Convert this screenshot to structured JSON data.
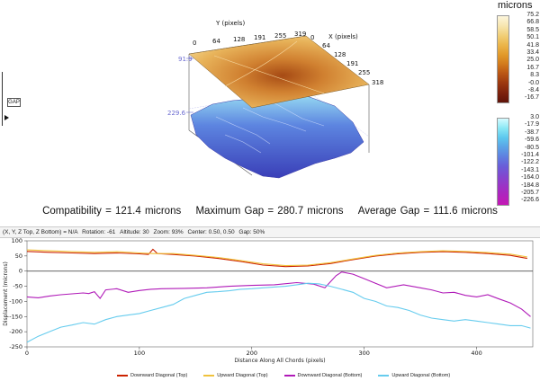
{
  "view3d": {
    "y_axis_label": "Y (pixels)",
    "x_axis_label": "X (pixels)",
    "y_ticks": [
      "0",
      "64",
      "128",
      "191",
      "255",
      "319"
    ],
    "x_ticks": [
      "0",
      "64",
      "128",
      "191",
      "255",
      "318"
    ],
    "z_top_value": "91.9",
    "z_bottom_value": "229.6",
    "gap_button": "GAP"
  },
  "colorbar_top": {
    "title": "microns",
    "labels": [
      "75.2",
      "66.8",
      "58.5",
      "50.1",
      "41.8",
      "33.4",
      "25.0",
      "16.7",
      "8.3",
      "-0.0",
      "-8.4",
      "-16.7"
    ],
    "colors": [
      "#fdf6dc",
      "#f7e6b0",
      "#f1cf78",
      "#ebb54a",
      "#e29a2a",
      "#d27a1c",
      "#b95514",
      "#9b3810",
      "#7d220d",
      "#5f1309"
    ]
  },
  "colorbar_bottom": {
    "labels": [
      "3.0",
      "-17.9",
      "-38.7",
      "-59.6",
      "-80.5",
      "-101.4",
      "-122.2",
      "-143.1",
      "-164.0",
      "-184.8",
      "-205.7",
      "-226.6"
    ],
    "colors": [
      "#d6fbff",
      "#8ae8f5",
      "#5cc7ee",
      "#5ba2e6",
      "#5f7ee0",
      "#6a5cd8",
      "#8247cf",
      "#9a34c6",
      "#b023bd",
      "#c419b5"
    ]
  },
  "stats": {
    "compatibility": "Compatibility = 121.4 microns",
    "max_gap": "Maximum Gap = 280.7 microns",
    "avg_gap": "Average Gap = 111.6 microns"
  },
  "infobar": {
    "coords": "(X, Y, Z Top, Z Bottom) = N/A",
    "rotation": "Rotation: -61",
    "altitude": "Altitude: 30",
    "zoom": "Zoom: 93%",
    "center": "Center: 0.50, 0.50",
    "gap": "Gap: 50%"
  },
  "chart_data": {
    "type": "line",
    "xlabel": "Distance Along All Chords (pixels)",
    "ylabel": "Displacement (microns)",
    "xlim": [
      0,
      450
    ],
    "ylim": [
      -250,
      100
    ],
    "x_ticks": [
      0,
      100,
      200,
      300,
      400
    ],
    "y_ticks": [
      100,
      50,
      0,
      -50,
      -100,
      -150,
      -200,
      -250
    ],
    "series": [
      {
        "name": "Downward Diagonal (Top)",
        "color": "#cc2200",
        "points": [
          [
            0,
            65
          ],
          [
            20,
            62
          ],
          [
            40,
            60
          ],
          [
            60,
            58
          ],
          [
            80,
            60
          ],
          [
            100,
            57
          ],
          [
            108,
            55
          ],
          [
            112,
            72
          ],
          [
            116,
            58
          ],
          [
            130,
            55
          ],
          [
            150,
            50
          ],
          [
            170,
            42
          ],
          [
            190,
            32
          ],
          [
            210,
            20
          ],
          [
            230,
            15
          ],
          [
            250,
            17
          ],
          [
            270,
            25
          ],
          [
            290,
            38
          ],
          [
            310,
            50
          ],
          [
            330,
            57
          ],
          [
            350,
            62
          ],
          [
            370,
            64
          ],
          [
            390,
            62
          ],
          [
            410,
            58
          ],
          [
            430,
            52
          ],
          [
            445,
            42
          ]
        ]
      },
      {
        "name": "Upward Diagonal (Top)",
        "color": "#f0c23c",
        "points": [
          [
            0,
            70
          ],
          [
            20,
            67
          ],
          [
            40,
            64
          ],
          [
            60,
            62
          ],
          [
            80,
            64
          ],
          [
            100,
            60
          ],
          [
            112,
            58
          ],
          [
            130,
            58
          ],
          [
            150,
            52
          ],
          [
            170,
            45
          ],
          [
            190,
            35
          ],
          [
            210,
            24
          ],
          [
            230,
            18
          ],
          [
            250,
            20
          ],
          [
            270,
            28
          ],
          [
            290,
            40
          ],
          [
            310,
            52
          ],
          [
            330,
            60
          ],
          [
            350,
            64
          ],
          [
            370,
            67
          ],
          [
            390,
            65
          ],
          [
            410,
            61
          ],
          [
            430,
            56
          ],
          [
            445,
            47
          ]
        ]
      },
      {
        "name": "Downward Diagonal (Bottom)",
        "color": "#b01ab8",
        "points": [
          [
            0,
            -85
          ],
          [
            10,
            -88
          ],
          [
            20,
            -82
          ],
          [
            30,
            -78
          ],
          [
            40,
            -75
          ],
          [
            50,
            -72
          ],
          [
            55,
            -74
          ],
          [
            60,
            -68
          ],
          [
            65,
            -90
          ],
          [
            70,
            -62
          ],
          [
            80,
            -58
          ],
          [
            90,
            -70
          ],
          [
            100,
            -64
          ],
          [
            110,
            -60
          ],
          [
            120,
            -58
          ],
          [
            140,
            -57
          ],
          [
            160,
            -55
          ],
          [
            180,
            -50
          ],
          [
            200,
            -47
          ],
          [
            220,
            -45
          ],
          [
            240,
            -38
          ],
          [
            255,
            -43
          ],
          [
            265,
            -55
          ],
          [
            275,
            -15
          ],
          [
            280,
            -3
          ],
          [
            290,
            -10
          ],
          [
            300,
            -25
          ],
          [
            310,
            -40
          ],
          [
            320,
            -55
          ],
          [
            335,
            -45
          ],
          [
            350,
            -55
          ],
          [
            360,
            -62
          ],
          [
            370,
            -72
          ],
          [
            380,
            -70
          ],
          [
            390,
            -80
          ],
          [
            400,
            -85
          ],
          [
            410,
            -78
          ],
          [
            420,
            -92
          ],
          [
            430,
            -105
          ],
          [
            440,
            -125
          ],
          [
            448,
            -150
          ]
        ]
      },
      {
        "name": "Upward Diagonal (Bottom)",
        "color": "#66ccee",
        "points": [
          [
            0,
            -235
          ],
          [
            10,
            -215
          ],
          [
            20,
            -200
          ],
          [
            30,
            -185
          ],
          [
            40,
            -178
          ],
          [
            50,
            -170
          ],
          [
            60,
            -175
          ],
          [
            70,
            -160
          ],
          [
            80,
            -150
          ],
          [
            90,
            -145
          ],
          [
            100,
            -140
          ],
          [
            110,
            -130
          ],
          [
            120,
            -120
          ],
          [
            130,
            -110
          ],
          [
            140,
            -90
          ],
          [
            150,
            -80
          ],
          [
            160,
            -70
          ],
          [
            170,
            -68
          ],
          [
            180,
            -65
          ],
          [
            190,
            -60
          ],
          [
            200,
            -58
          ],
          [
            210,
            -55
          ],
          [
            230,
            -50
          ],
          [
            240,
            -45
          ],
          [
            250,
            -40
          ],
          [
            260,
            -42
          ],
          [
            270,
            -50
          ],
          [
            280,
            -60
          ],
          [
            290,
            -70
          ],
          [
            300,
            -90
          ],
          [
            310,
            -100
          ],
          [
            320,
            -115
          ],
          [
            330,
            -120
          ],
          [
            340,
            -130
          ],
          [
            350,
            -145
          ],
          [
            360,
            -155
          ],
          [
            370,
            -160
          ],
          [
            380,
            -165
          ],
          [
            390,
            -160
          ],
          [
            400,
            -165
          ],
          [
            410,
            -170
          ],
          [
            420,
            -175
          ],
          [
            430,
            -180
          ],
          [
            440,
            -180
          ],
          [
            448,
            -188
          ]
        ]
      }
    ],
    "legend": [
      "Downward Diagonal (Top)",
      "Upward Diagonal (Top)",
      "Downward Diagonal (Bottom)",
      "Upward Diagonal (Bottom)"
    ],
    "grid": false
  }
}
